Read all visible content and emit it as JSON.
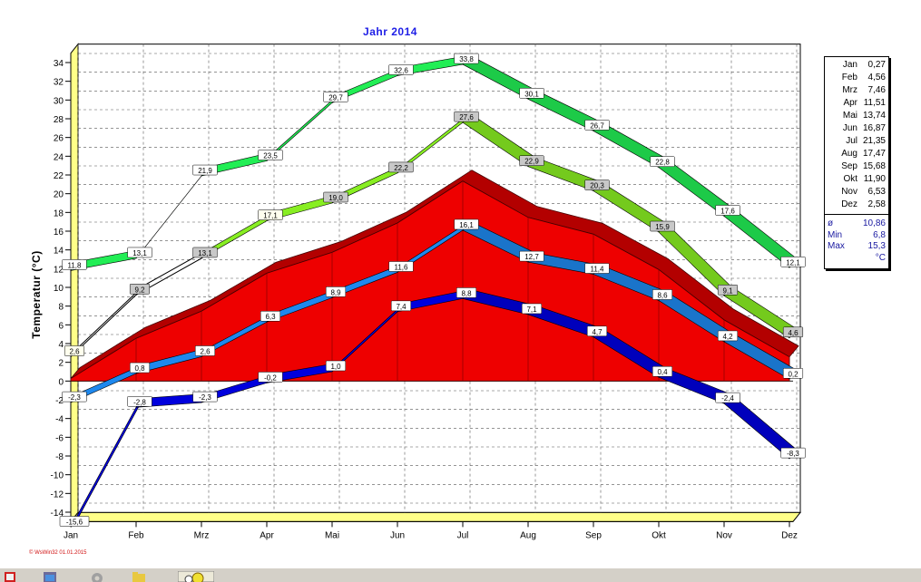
{
  "chart_data": {
    "type": "line",
    "title": "Jahr  2014",
    "ylabel": "Temperatur  (°C)",
    "categories": [
      "Jan",
      "Feb",
      "Mrz",
      "Apr",
      "Mai",
      "Jun",
      "Jul",
      "Aug",
      "Sep",
      "Okt",
      "Nov",
      "Dez"
    ],
    "ylim": [
      -15,
      35
    ],
    "yticks": [
      34,
      32,
      30,
      28,
      26,
      24,
      22,
      20,
      18,
      16,
      14,
      12,
      10,
      8,
      6,
      4,
      2,
      0,
      -2,
      -4,
      -6,
      -8,
      -10,
      -12,
      -14
    ],
    "grid": true,
    "legend_position": "right",
    "series": [
      {
        "name": "",
        "role": "absolute-max",
        "color": "#22ee55",
        "values": [
          11.8,
          13.1,
          21.9,
          23.5,
          29.7,
          32.6,
          33.8,
          30.1,
          26.7,
          22.8,
          17.6,
          12.1
        ],
        "labels": [
          "11,8",
          "13,1",
          "21,9",
          "23,5",
          "29,7",
          "32,6",
          "33,8",
          "30,1",
          "26,7",
          "22,8",
          "17,6",
          "12,1"
        ]
      },
      {
        "name": "",
        "role": "mean-max",
        "color": "#88ee22",
        "values": [
          2.6,
          9.2,
          13.1,
          17.1,
          19.0,
          22.2,
          27.6,
          22.9,
          20.3,
          15.9,
          9.1,
          4.6
        ],
        "labels": [
          "2,6",
          "9,2",
          "13,1",
          "17,1",
          "19,0",
          "22,2",
          "27,6",
          "22,9",
          "20,3",
          "15,9",
          "9,1",
          "4,6"
        ]
      },
      {
        "name": "",
        "role": "mean-area",
        "color": "#ee0000",
        "values": [
          0.27,
          4.56,
          7.46,
          11.51,
          13.74,
          16.87,
          21.35,
          17.47,
          15.68,
          11.9,
          6.53,
          2.58
        ]
      },
      {
        "name": "",
        "role": "mean-min",
        "color": "#1e88ee",
        "values": [
          -2.3,
          0.8,
          2.6,
          6.3,
          8.9,
          11.6,
          16.1,
          12.7,
          11.4,
          8.6,
          4.2,
          0.2
        ],
        "labels": [
          "-2,3",
          "0,8",
          "2,6",
          "6,3",
          "8,9",
          "11,6",
          "16,1",
          "12,7",
          "11,4",
          "8,6",
          "4,2",
          "0,2"
        ]
      },
      {
        "name": "",
        "role": "absolute-min",
        "color": "#0000dd",
        "values": [
          -15.6,
          -2.8,
          -2.3,
          -0.2,
          1.0,
          7.4,
          8.8,
          7.1,
          4.7,
          0.4,
          -2.4,
          -8.3
        ],
        "labels": [
          "-15,6",
          "-2,8",
          "-2,3",
          "-0,2",
          "1,0",
          "7,4",
          "8,8",
          "7,1",
          "4,7",
          "0,4",
          "-2,4",
          "-8,3"
        ]
      }
    ]
  },
  "legend": {
    "months": [
      {
        "month": "Jan",
        "value": "0,27"
      },
      {
        "month": "Feb",
        "value": "4,56"
      },
      {
        "month": "Mrz",
        "value": "7,46"
      },
      {
        "month": "Apr",
        "value": "11,51"
      },
      {
        "month": "Mai",
        "value": "13,74"
      },
      {
        "month": "Jun",
        "value": "16,87"
      },
      {
        "month": "Jul",
        "value": "21,35"
      },
      {
        "month": "Aug",
        "value": "17,47"
      },
      {
        "month": "Sep",
        "value": "15,68"
      },
      {
        "month": "Okt",
        "value": "11,90"
      },
      {
        "month": "Nov",
        "value": "6,53"
      },
      {
        "month": "Dez",
        "value": "2,58"
      }
    ],
    "stats": [
      {
        "label": "ø",
        "value": "10,86"
      },
      {
        "label": "Min",
        "value": "6,8"
      },
      {
        "label": "Max",
        "value": "15,3"
      },
      {
        "label": "",
        "value": "°C"
      }
    ]
  },
  "credit": "© WsWin32  01.01.2015",
  "taskbar": {
    "icons": [
      "stamp-icon",
      "window-icon",
      "gear-icon",
      "folder-icon",
      "weather-icon"
    ],
    "colors": {
      "background": "#d4d0c8"
    }
  }
}
